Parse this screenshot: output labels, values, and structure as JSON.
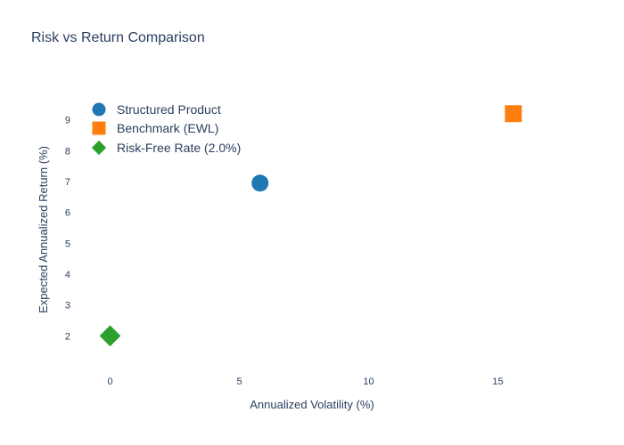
{
  "chart_data": {
    "type": "scatter",
    "title": "Risk vs Return Comparison",
    "xlabel": "Annualized Volatility (%)",
    "ylabel": "Expected Annualized Return (%)",
    "xlim": [
      -1.5,
      18.5
    ],
    "ylim": [
      1.0,
      10.0
    ],
    "x_ticks": [
      0,
      5,
      10,
      15
    ],
    "y_ticks": [
      2,
      3,
      4,
      5,
      6,
      7,
      8,
      9
    ],
    "grid": false,
    "legend_position": "top-left",
    "series": [
      {
        "name": "Structured Product",
        "x": [
          5.8
        ],
        "y": [
          6.95
        ],
        "marker": "circle",
        "color": "#1f77b4"
      },
      {
        "name": "Benchmark (EWL)",
        "x": [
          15.6
        ],
        "y": [
          9.2
        ],
        "marker": "square",
        "color": "#ff7f0e"
      },
      {
        "name": "Risk-Free Rate (2.0%)",
        "x": [
          0.0
        ],
        "y": [
          2.0
        ],
        "marker": "diamond",
        "color": "#2ca02c"
      }
    ]
  }
}
